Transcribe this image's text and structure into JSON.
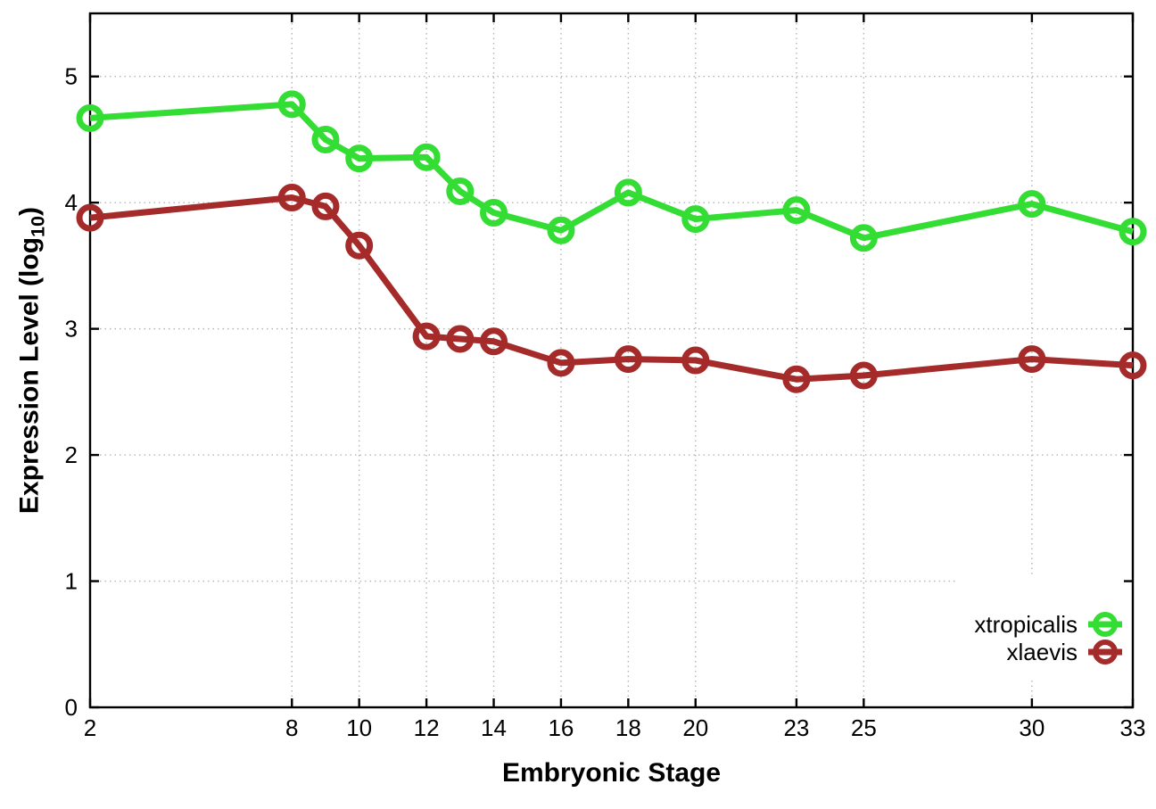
{
  "chart_data": {
    "type": "line",
    "title": "",
    "xlabel": "Embryonic Stage",
    "ylabel": {
      "prefix": "Expression Level (log",
      "sub": "10",
      "suffix": ")"
    },
    "xlim": [
      2,
      33
    ],
    "ylim": [
      0,
      5.5
    ],
    "x_ticks": [
      2,
      8,
      10,
      12,
      14,
      16,
      18,
      20,
      23,
      25,
      30,
      33
    ],
    "y_ticks": [
      0,
      1,
      2,
      3,
      4,
      5
    ],
    "grid": true,
    "legend_position": "inside-bottom-right",
    "x": [
      2,
      8,
      9,
      10,
      12,
      13,
      14,
      16,
      18,
      20,
      23,
      25,
      30,
      33
    ],
    "series": [
      {
        "name": "xtropicalis",
        "color": "#33dd33",
        "values": [
          4.67,
          4.78,
          4.5,
          4.35,
          4.36,
          4.09,
          3.92,
          3.78,
          4.08,
          3.87,
          3.94,
          3.72,
          3.99,
          3.77
        ]
      },
      {
        "name": "xlaevis",
        "color": "#a52a2a",
        "values": [
          3.88,
          4.04,
          3.97,
          3.66,
          2.94,
          2.92,
          2.9,
          2.73,
          2.76,
          2.75,
          2.6,
          2.63,
          2.76,
          2.71
        ]
      }
    ]
  },
  "colors": {
    "background": "#ffffff",
    "border": "#000000",
    "grid": "#b4b4b4",
    "text": "#000000"
  }
}
